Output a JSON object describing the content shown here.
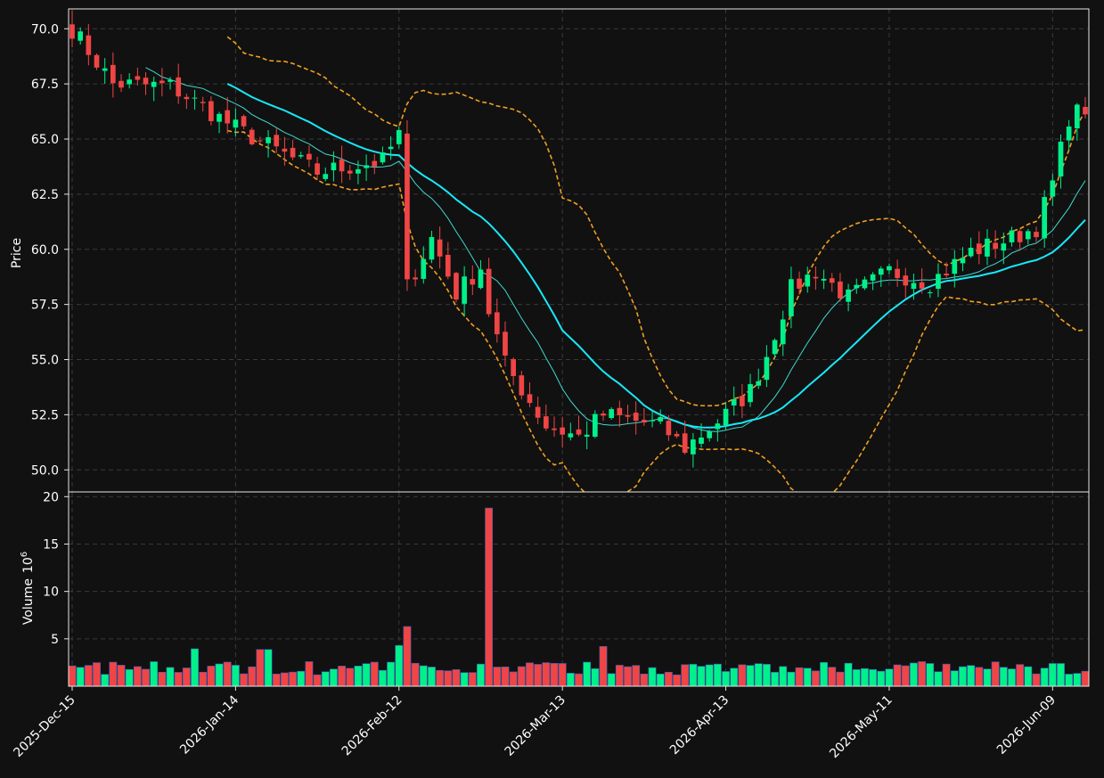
{
  "chart_data": [
    {
      "type": "candlestick",
      "ylabel": "Price",
      "ylim": [
        49.0,
        70.9
      ],
      "yticks": [
        "50.0",
        "52.5",
        "55.0",
        "57.5",
        "60.0",
        "62.5",
        "65.0",
        "67.5",
        "70.0"
      ],
      "ytick_values": [
        50.0,
        52.5,
        55.0,
        57.5,
        60.0,
        62.5,
        65.0,
        67.5,
        70.0
      ],
      "grid": true,
      "colors": {
        "up": "#00f08a",
        "down": "#f04545",
        "ma_thick": "#18e8f8",
        "ma_thin": "#40d8d0",
        "bands": "#f0a020"
      },
      "overlays": [
        "moving-average-thin",
        "moving-average-thick",
        "bollinger-upper",
        "bollinger-lower"
      ]
    },
    {
      "type": "bar",
      "ylabel": "Volume",
      "ylabel_exponent": "10^6",
      "ylabel_exp_base": "10",
      "ylabel_exp_power": "6",
      "ylim": [
        0,
        20.5
      ],
      "yticks": [
        "5",
        "10",
        "15",
        "20"
      ],
      "ytick_values": [
        5,
        10,
        15,
        20
      ],
      "grid": true
    }
  ],
  "xaxis": {
    "ticks": [
      "2025-Dec-15",
      "2026-Jan-14",
      "2026-Feb-12",
      "2026-Mar-13",
      "2026-Apr-13",
      "2026-May-11",
      "2026-Jun-09"
    ],
    "tick_indices": [
      0,
      20,
      40,
      60,
      80,
      100,
      120
    ]
  }
}
